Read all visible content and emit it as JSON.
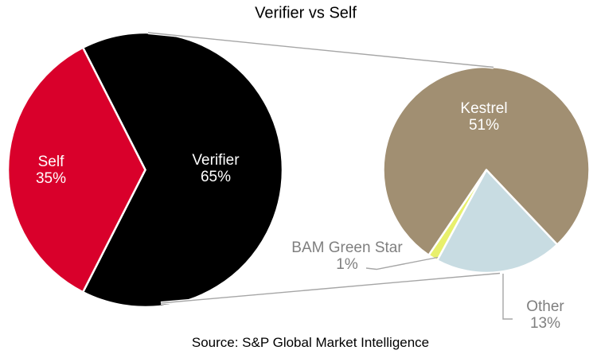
{
  "colors": {
    "background": "#FFFFFF",
    "title_text": "#000000",
    "inside_label_text": "#FFFFFF",
    "outside_label_text": "#7F7F7F",
    "connector_line": "#A6A6A6",
    "slice_border": "#FFFFFF"
  },
  "chart_data": {
    "type": "pie",
    "subtype": "pie-of-pie",
    "title": "Verifier vs Self",
    "source": "Source: S&P Global Market Intelligence",
    "legend": "none",
    "main_pie": {
      "slices": [
        {
          "label": "Verifier",
          "value": 65,
          "pct": "65%",
          "color": "#000000"
        },
        {
          "label": "Self",
          "value": 35,
          "pct": "35%",
          "color": "#D9002B"
        }
      ]
    },
    "secondary_pie": {
      "slices": [
        {
          "label": "Kestrel",
          "value": 51,
          "pct": "51%",
          "color": "#A18F72"
        },
        {
          "label": "BAM Green Star",
          "value": 1,
          "pct": "1%",
          "color": "#E8F06C"
        },
        {
          "label": "Other",
          "value": 13,
          "pct": "13%",
          "color": "#C8DCE2"
        }
      ]
    }
  }
}
